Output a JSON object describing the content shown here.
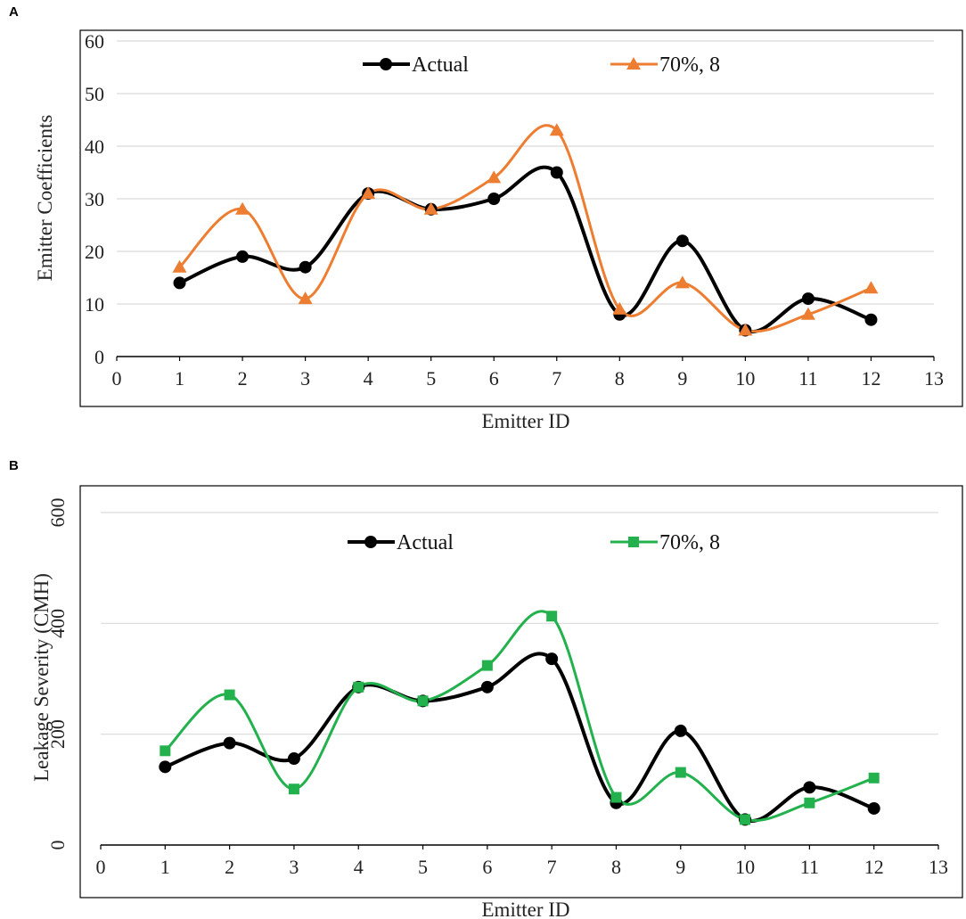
{
  "chart_data": [
    {
      "type": "line",
      "panel_label": "A",
      "xlabel": "Emitter ID",
      "ylabel": "Emitter Coefficients",
      "xlim": [
        0,
        13
      ],
      "ylim": [
        0,
        60
      ],
      "xticks": [
        "0",
        "1",
        "2",
        "3",
        "4",
        "5",
        "6",
        "7",
        "8",
        "9",
        "10",
        "11",
        "12",
        "13"
      ],
      "yticks": [
        "0",
        "10",
        "20",
        "30",
        "40",
        "50",
        "60"
      ],
      "grid": true,
      "legend_position": "top",
      "x": [
        1,
        2,
        3,
        4,
        5,
        6,
        7,
        8,
        9,
        10,
        11,
        12
      ],
      "series": [
        {
          "name": "Actual",
          "color": "#000000",
          "marker": "circle",
          "values": [
            14,
            19,
            17,
            31,
            28,
            30,
            35,
            8,
            22,
            5,
            11,
            7
          ]
        },
        {
          "name": "70%, 8",
          "color": "#ed7d31",
          "marker": "triangle",
          "values": [
            17,
            28,
            11,
            31,
            28,
            34,
            43,
            9,
            14,
            5,
            8,
            13
          ]
        }
      ]
    },
    {
      "type": "line",
      "panel_label": "B",
      "xlabel": "Emitter ID",
      "ylabel": "Leakage Severity (CMH)",
      "xlim": [
        0,
        13
      ],
      "ylim": [
        0,
        600
      ],
      "xticks": [
        "0",
        "1",
        "2",
        "3",
        "4",
        "5",
        "6",
        "7",
        "8",
        "9",
        "10",
        "11",
        "12",
        "13"
      ],
      "yticks": [
        "0",
        "200",
        "400",
        "600"
      ],
      "grid": true,
      "legend_position": "top",
      "x": [
        1,
        2,
        3,
        4,
        5,
        6,
        7,
        8,
        9,
        10,
        11,
        12
      ],
      "series": [
        {
          "name": "Actual",
          "color": "#000000",
          "marker": "circle",
          "values": [
            141,
            184,
            156,
            285,
            260,
            285,
            336,
            76,
            206,
            46,
            104,
            66
          ]
        },
        {
          "name": "70%, 8",
          "color": "#22b14c",
          "marker": "square",
          "values": [
            170,
            271,
            101,
            285,
            260,
            324,
            413,
            86,
            131,
            46,
            76,
            121
          ]
        }
      ]
    }
  ]
}
